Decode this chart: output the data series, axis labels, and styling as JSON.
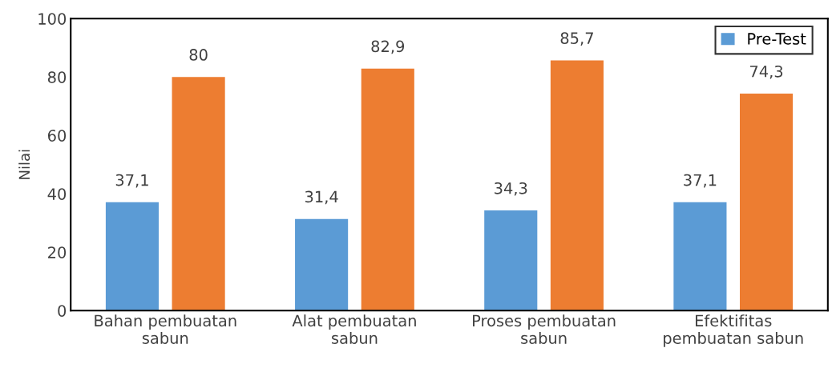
{
  "chart_data": {
    "type": "bar",
    "ylabel": "Nilai",
    "categories": [
      "Bahan pembuatan sabun",
      "Alat pembuatan sabun",
      "Proses pembuatan sabun",
      "Efektifitas pembuatan sabun"
    ],
    "series": [
      {
        "name": "Pre-Test",
        "color": "#5b9bd5",
        "values": [
          37.1,
          31.4,
          34.3,
          37.1
        ],
        "value_labels": [
          "37,1",
          "31,4",
          "34,3",
          "37,1"
        ]
      },
      {
        "color": "#ed7d31",
        "values": [
          80,
          82.9,
          85.7,
          74.3
        ],
        "value_labels": [
          "80",
          "82,9",
          "85,7",
          "74,3"
        ]
      }
    ],
    "ylim": [
      0,
      100
    ],
    "yticks": [
      0,
      20,
      40,
      60,
      80,
      100
    ],
    "grid": false,
    "legend": "top right"
  }
}
